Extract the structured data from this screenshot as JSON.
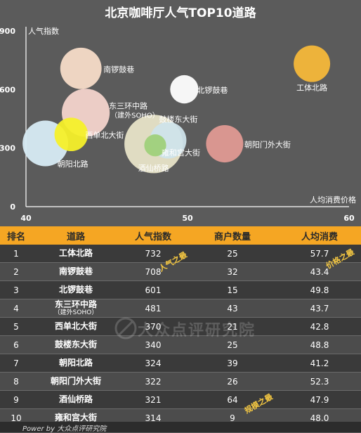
{
  "title": "北京咖啡厅人气TOP10道路",
  "chart_data": {
    "type": "bubble",
    "title": "北京咖啡厅人气TOP10道路",
    "xlabel": "人均消费价格",
    "ylabel": "人气指数",
    "xlim": [
      40,
      60
    ],
    "ylim": [
      0,
      900
    ],
    "xticks": [
      "40",
      "50",
      "60"
    ],
    "yticks": [
      "0",
      "300",
      "600",
      "900"
    ],
    "grid": false,
    "points": [
      {
        "label": "工体北路",
        "x": 57.7,
        "y": 732,
        "size": 25,
        "color": "#f5b83a"
      },
      {
        "label": "南锣鼓巷",
        "x": 43.4,
        "y": 708,
        "size": 32,
        "color": "#f7dcc8"
      },
      {
        "label": "北锣鼓巷",
        "x": 49.8,
        "y": 601,
        "size": 15,
        "color": "#ffffff"
      },
      {
        "label": "东三环中路",
        "sublabel": "（建外SOHO）",
        "x": 43.7,
        "y": 481,
        "size": 43,
        "color": "#f4d4cc"
      },
      {
        "label": "西单北大街",
        "x": 42.8,
        "y": 370,
        "size": 21,
        "color": "#f5f02a"
      },
      {
        "label": "鼓楼东大街",
        "x": 48.8,
        "y": 340,
        "size": 25,
        "color": "#cfe3ea"
      },
      {
        "label": "朝阳北路",
        "x": 41.2,
        "y": 324,
        "size": 39,
        "color": "#d8ecf6"
      },
      {
        "label": "朝阳门外大街",
        "x": 52.3,
        "y": 322,
        "size": 26,
        "color": "#e09a94"
      },
      {
        "label": "酒仙桥路",
        "x": 47.9,
        "y": 321,
        "size": 64,
        "color": "#e8e4c8"
      },
      {
        "label": "雍和宫大街",
        "x": 48.0,
        "y": 314,
        "size": 9,
        "color": "#9fd07a"
      }
    ]
  },
  "table": {
    "headers": [
      "排名",
      "道路",
      "人气指数",
      "商户数量",
      "人均消费"
    ],
    "rows": [
      {
        "rank": "1",
        "road": "工体北路",
        "sub": "",
        "pop": "732",
        "count": "25",
        "price": "57.7"
      },
      {
        "rank": "2",
        "road": "南锣鼓巷",
        "sub": "",
        "pop": "708",
        "count": "32",
        "price": "43.4"
      },
      {
        "rank": "3",
        "road": "北锣鼓巷",
        "sub": "",
        "pop": "601",
        "count": "15",
        "price": "49.8"
      },
      {
        "rank": "4",
        "road": "东三环中路",
        "sub": "（建外SOHO）",
        "pop": "481",
        "count": "43",
        "price": "43.7"
      },
      {
        "rank": "5",
        "road": "西单北大街",
        "sub": "",
        "pop": "370",
        "count": "21",
        "price": "42.8"
      },
      {
        "rank": "6",
        "road": "鼓楼东大街",
        "sub": "",
        "pop": "340",
        "count": "25",
        "price": "48.8"
      },
      {
        "rank": "7",
        "road": "朝阳北路",
        "sub": "",
        "pop": "324",
        "count": "39",
        "price": "41.2"
      },
      {
        "rank": "8",
        "road": "朝阳门外大街",
        "sub": "",
        "pop": "322",
        "count": "26",
        "price": "52.3"
      },
      {
        "rank": "9",
        "road": "酒仙桥路",
        "sub": "",
        "pop": "321",
        "count": "64",
        "price": "47.9"
      },
      {
        "rank": "10",
        "road": "雍和宫大街",
        "sub": "",
        "pop": "314",
        "count": "9",
        "price": "48.0"
      }
    ]
  },
  "badges": {
    "popularity": "人气之最",
    "price": "价格之最",
    "scale": "规模之最"
  },
  "watermark": "大众点评研究院",
  "footer": "Power by 大众点评研究院",
  "colors": {
    "background": "#5b5b5b",
    "header": "#f5a623",
    "badge": "#f5c842"
  }
}
